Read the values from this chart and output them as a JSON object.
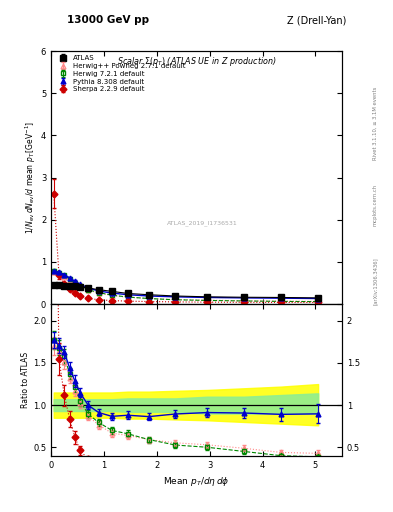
{
  "title_top_left": "13000 GeV pp",
  "title_top_right": "Z (Drell-Yan)",
  "plot_title": "Scalar \\Sigma(p_T) (ATLAS UE in Z production)",
  "watermark": "ATLAS_2019_I1736531",
  "ylabel_main": "1/N_{ev} dN_{ev}/d mean p_T [GeV]^{-1}",
  "ylabel_ratio": "Ratio to ATLAS",
  "xlabel": "Mean p_T/d\\eta d\\phi",
  "right_label_top": "Rivet 3.1.10, ≥ 3.1M events",
  "right_label_bottom": "[arXiv:1306.3436]",
  "right_label_mid": "mcplots.cern.ch",
  "ylim_main": [
    0,
    6
  ],
  "ylim_ratio": [
    0.4,
    2.2
  ],
  "xlim": [
    0,
    5.5
  ],
  "atlas_x": [
    0.05,
    0.15,
    0.25,
    0.35,
    0.45,
    0.55,
    0.7,
    0.9,
    1.15,
    1.45,
    1.85,
    2.35,
    2.95,
    3.65,
    4.35,
    5.05
  ],
  "atlas_y": [
    0.44,
    0.44,
    0.43,
    0.43,
    0.42,
    0.41,
    0.38,
    0.34,
    0.3,
    0.25,
    0.22,
    0.19,
    0.17,
    0.16,
    0.155,
    0.145
  ],
  "atlas_yerr": [
    0.015,
    0.015,
    0.015,
    0.015,
    0.015,
    0.015,
    0.012,
    0.012,
    0.01,
    0.01,
    0.008,
    0.008,
    0.008,
    0.008,
    0.008,
    0.008
  ],
  "herwig_pp_x": [
    0.05,
    0.15,
    0.25,
    0.35,
    0.45,
    0.55,
    0.7,
    0.9,
    1.15,
    1.45,
    1.85,
    2.35,
    2.95,
    3.65,
    4.35,
    5.05
  ],
  "herwig_pp_y": [
    0.75,
    0.72,
    0.65,
    0.57,
    0.49,
    0.42,
    0.33,
    0.26,
    0.2,
    0.16,
    0.13,
    0.105,
    0.09,
    0.078,
    0.068,
    0.062
  ],
  "herwig_pp_yerr": [
    0.04,
    0.03,
    0.03,
    0.02,
    0.02,
    0.02,
    0.015,
    0.012,
    0.01,
    0.008,
    0.006,
    0.005,
    0.004,
    0.004,
    0.004,
    0.004
  ],
  "herwig72_x": [
    0.05,
    0.15,
    0.25,
    0.35,
    0.45,
    0.55,
    0.7,
    0.9,
    1.15,
    1.45,
    1.85,
    2.35,
    2.95,
    3.65,
    4.35,
    5.05
  ],
  "herwig72_y": [
    0.78,
    0.74,
    0.68,
    0.59,
    0.51,
    0.43,
    0.34,
    0.27,
    0.21,
    0.165,
    0.13,
    0.1,
    0.085,
    0.072,
    0.062,
    0.056
  ],
  "herwig72_yerr": [
    0.04,
    0.03,
    0.03,
    0.02,
    0.02,
    0.02,
    0.015,
    0.012,
    0.01,
    0.008,
    0.006,
    0.005,
    0.004,
    0.004,
    0.004,
    0.004
  ],
  "pythia_x": [
    0.05,
    0.15,
    0.25,
    0.35,
    0.45,
    0.55,
    0.7,
    0.9,
    1.15,
    1.45,
    1.85,
    2.35,
    2.95,
    3.65,
    4.35,
    5.05
  ],
  "pythia_y": [
    0.78,
    0.75,
    0.7,
    0.62,
    0.54,
    0.47,
    0.38,
    0.31,
    0.26,
    0.22,
    0.19,
    0.17,
    0.155,
    0.145,
    0.138,
    0.13
  ],
  "pythia_yerr": [
    0.03,
    0.03,
    0.02,
    0.02,
    0.02,
    0.015,
    0.012,
    0.01,
    0.008,
    0.007,
    0.006,
    0.005,
    0.005,
    0.005,
    0.01,
    0.015
  ],
  "sherpa_x": [
    0.05,
    0.15,
    0.25,
    0.35,
    0.45,
    0.55,
    0.7,
    0.9,
    1.15,
    1.45,
    1.85,
    2.35,
    2.95,
    3.65,
    4.35,
    5.05
  ],
  "sherpa_y": [
    2.62,
    0.68,
    0.48,
    0.36,
    0.26,
    0.19,
    0.135,
    0.1,
    0.082,
    0.068,
    0.058,
    0.05,
    0.044,
    0.04,
    0.038,
    0.036
  ],
  "sherpa_yerr": [
    0.35,
    0.08,
    0.05,
    0.04,
    0.03,
    0.02,
    0.015,
    0.01,
    0.008,
    0.006,
    0.005,
    0.004,
    0.004,
    0.004,
    0.02,
    0.004
  ],
  "atlas_color": "#000000",
  "herwig_pp_color": "#ff8888",
  "herwig72_color": "#008800",
  "pythia_color": "#0000cc",
  "sherpa_color": "#cc0000",
  "band_x": [
    0.05,
    0.15,
    0.25,
    0.35,
    0.45,
    0.55,
    0.7,
    0.9,
    1.15,
    1.45,
    1.85,
    2.35,
    2.95,
    3.65,
    4.35,
    5.05
  ],
  "band_green_low": [
    0.93,
    0.93,
    0.93,
    0.93,
    0.93,
    0.93,
    0.93,
    0.93,
    0.93,
    0.92,
    0.92,
    0.92,
    0.9,
    0.9,
    0.9,
    0.9
  ],
  "band_green_high": [
    1.07,
    1.07,
    1.07,
    1.07,
    1.07,
    1.07,
    1.07,
    1.07,
    1.07,
    1.08,
    1.08,
    1.08,
    1.1,
    1.1,
    1.12,
    1.14
  ],
  "band_yellow_low": [
    0.85,
    0.85,
    0.85,
    0.85,
    0.85,
    0.85,
    0.85,
    0.85,
    0.85,
    0.84,
    0.84,
    0.83,
    0.82,
    0.8,
    0.78,
    0.76
  ],
  "band_yellow_high": [
    1.15,
    1.15,
    1.15,
    1.15,
    1.15,
    1.15,
    1.15,
    1.15,
    1.15,
    1.16,
    1.16,
    1.17,
    1.18,
    1.2,
    1.22,
    1.25
  ]
}
